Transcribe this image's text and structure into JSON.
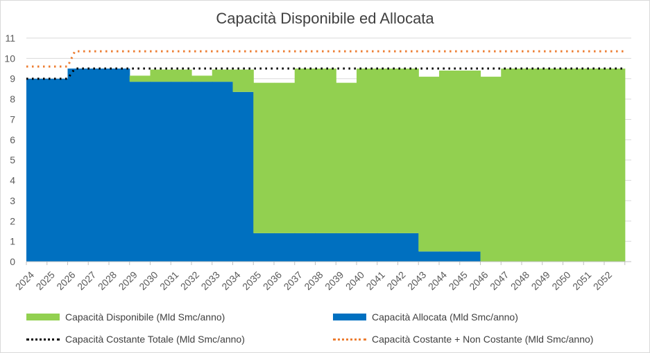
{
  "chart_data": {
    "type": "area",
    "title": "Capacità Disponibile ed Allocata",
    "xlabel": "",
    "ylabel": "",
    "ylim": [
      0,
      11
    ],
    "yticks": [
      0,
      1,
      2,
      3,
      4,
      5,
      6,
      7,
      8,
      9,
      10,
      11
    ],
    "grid": true,
    "legend_position": "bottom",
    "categories": [
      "2024",
      "2025",
      "2026",
      "2027",
      "2028",
      "2029",
      "2030",
      "2031",
      "2032",
      "2033",
      "2034",
      "2035",
      "2036",
      "2037",
      "2038",
      "2039",
      "2040",
      "2041",
      "2042",
      "2043",
      "2044",
      "2045",
      "2046",
      "2047",
      "2048",
      "2049",
      "2050",
      "2051",
      "2052"
    ],
    "series": [
      {
        "name": "Capacità Disponibile (Mld Smc/anno)",
        "style": "area",
        "color": "#92d050",
        "values": [
          0,
          0,
          0,
          0,
          0,
          0.3,
          0.6,
          0.6,
          0.3,
          0.6,
          1.1,
          7.4,
          7.4,
          8.1,
          8.1,
          7.4,
          8.1,
          8.1,
          8.1,
          8.6,
          8.9,
          8.9,
          9.1,
          9.5,
          9.5,
          9.5,
          9.5,
          9.5,
          9.5
        ]
      },
      {
        "name": "Capacità Allocata (Mld Smc/anno)",
        "style": "area",
        "color": "#0070c0",
        "values": [
          9.0,
          9.0,
          9.5,
          9.5,
          9.5,
          8.85,
          8.85,
          8.85,
          8.85,
          8.85,
          8.35,
          1.4,
          1.4,
          1.4,
          1.4,
          1.4,
          1.4,
          1.4,
          1.4,
          0.5,
          0.5,
          0.5,
          0,
          0,
          0,
          0,
          0,
          0,
          0
        ]
      },
      {
        "name": "Capacità Costante Totale (Mld Smc/anno)",
        "style": "dotted-line",
        "color": "#000000",
        "values": [
          9.0,
          9.0,
          9.5,
          9.5,
          9.5,
          9.5,
          9.5,
          9.5,
          9.5,
          9.5,
          9.5,
          9.5,
          9.5,
          9.5,
          9.5,
          9.5,
          9.5,
          9.5,
          9.5,
          9.5,
          9.5,
          9.5,
          9.5,
          9.5,
          9.5,
          9.5,
          9.5,
          9.5,
          9.5
        ]
      },
      {
        "name": "Capacità Costante + Non Costante (Mld Smc/anno)",
        "style": "dotted-line",
        "color": "#ed7d31",
        "values": [
          9.6,
          9.6,
          10.35,
          10.35,
          10.35,
          10.35,
          10.35,
          10.35,
          10.35,
          10.35,
          10.35,
          10.35,
          10.35,
          10.35,
          10.35,
          10.35,
          10.35,
          10.35,
          10.35,
          10.35,
          10.35,
          10.35,
          10.35,
          10.35,
          10.35,
          10.35,
          10.35,
          10.35,
          10.35
        ]
      }
    ]
  }
}
